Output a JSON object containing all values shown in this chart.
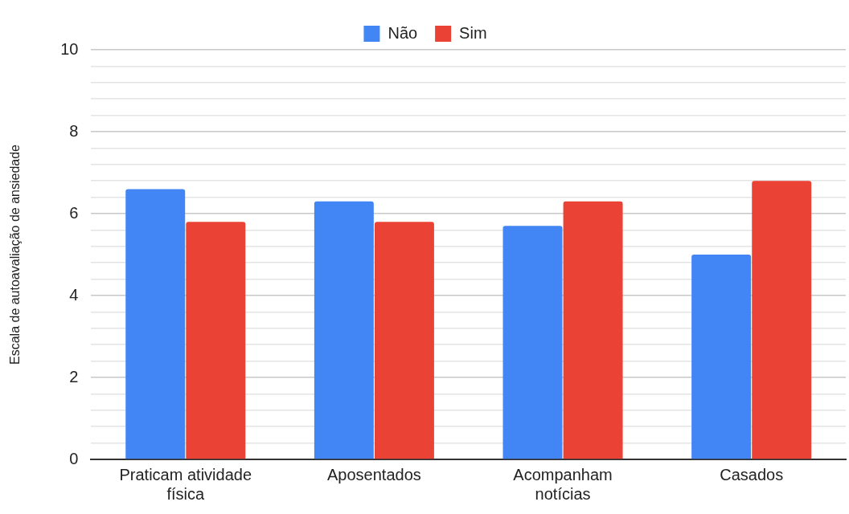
{
  "chart_data": {
    "type": "bar",
    "ylabel": "Escala de autoavaliação de ansiedade",
    "categories": [
      "Praticam atividade física",
      "Aposentados",
      "Acompanham notícias",
      "Casados"
    ],
    "series": [
      {
        "name": "Não",
        "color": "#4285f4",
        "values": [
          6.6,
          6.3,
          5.7,
          5.0
        ]
      },
      {
        "name": "Sim",
        "color": "#ea4335",
        "values": [
          5.8,
          5.8,
          6.3,
          6.8
        ]
      }
    ],
    "ylim": [
      0,
      10
    ],
    "yticks": [
      0,
      {
        "value": 0.4,
        "label": null
      },
      {
        "value": 0.8,
        "label": null
      },
      {
        "value": 1.2,
        "label": null
      },
      {
        "value": 1.6,
        "label": null
      },
      2,
      {
        "value": 2.4,
        "label": null
      },
      {
        "value": 2.8,
        "label": null
      },
      {
        "value": 3.2,
        "label": null
      },
      {
        "value": 3.6,
        "label": null
      },
      4,
      {
        "value": 4.4,
        "label": null
      },
      {
        "value": 4.8,
        "label": null
      },
      {
        "value": 5.2,
        "label": null
      },
      {
        "value": 5.6,
        "label": null
      },
      6,
      {
        "value": 6.4,
        "label": null
      },
      {
        "value": 6.8,
        "label": null
      },
      {
        "value": 7.2,
        "label": null
      },
      {
        "value": 7.6,
        "label": null
      },
      8,
      {
        "value": 8.4,
        "label": null
      },
      {
        "value": 8.8,
        "label": null
      },
      {
        "value": 9.2,
        "label": null
      },
      {
        "value": 9.6,
        "label": null
      },
      10
    ],
    "grid": "y",
    "legend": "top"
  }
}
